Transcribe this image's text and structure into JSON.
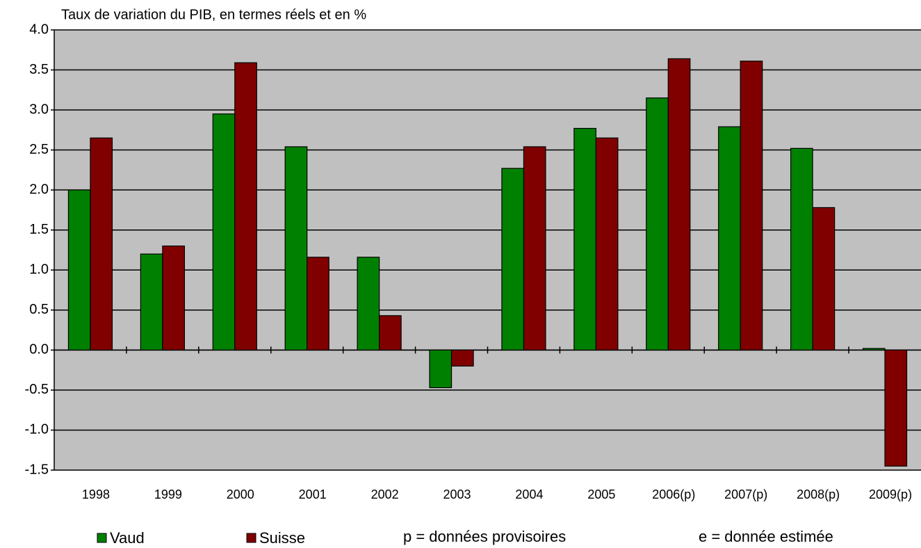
{
  "chart_data": {
    "type": "bar",
    "title": "Taux de variation du PIB, en termes réels et en %",
    "categories": [
      "1998",
      "1999",
      "2000",
      "2001",
      "2002",
      "2003",
      "2004",
      "2005",
      "2006(p)",
      "2007(p)",
      "2008(p)",
      "2009(p)"
    ],
    "series": [
      {
        "name": "Vaud",
        "color": "#008000",
        "values": [
          2.0,
          1.2,
          2.95,
          2.54,
          1.16,
          -0.47,
          2.27,
          2.77,
          3.15,
          2.79,
          2.52,
          0.02
        ]
      },
      {
        "name": "Suisse",
        "color": "#800000",
        "values": [
          2.65,
          1.3,
          3.59,
          1.16,
          0.43,
          -0.2,
          2.54,
          2.65,
          3.64,
          3.61,
          1.78,
          -1.45
        ]
      }
    ],
    "ylim": [
      -1.5,
      4.0
    ],
    "yticks": [
      -1.5,
      {
        "value": -1,
        "label": "-1.0"
      },
      -0.5,
      {
        "value": 0,
        "label": "0.0"
      },
      0.5,
      {
        "value": 1,
        "label": "1.0"
      },
      1.5,
      {
        "value": 2,
        "label": "2.0"
      },
      2.5,
      {
        "value": 3,
        "label": "3.0"
      },
      3.5,
      {
        "value": 4,
        "label": "4.0"
      }
    ],
    "grid": true,
    "annotations": [
      "p = données provisoires",
      "e = donnée estimée"
    ]
  }
}
